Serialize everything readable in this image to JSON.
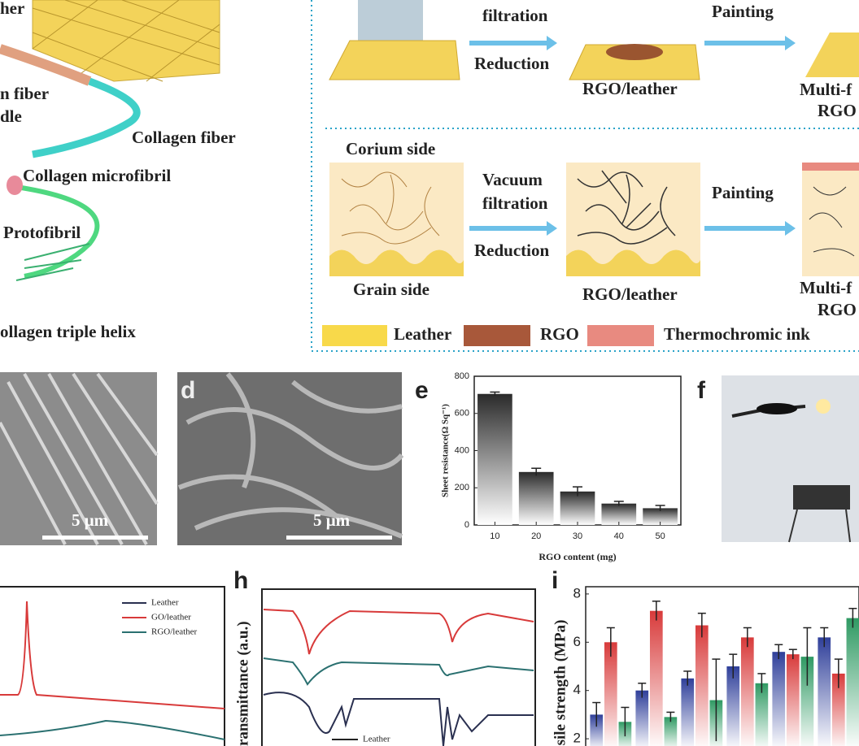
{
  "panel_a": {
    "labels": [
      "her",
      "n fiber",
      "dle",
      "Collagen fiber",
      "Collagen microfibril",
      "Protofibril",
      "ollagen triple helix"
    ]
  },
  "panel_b": {
    "labels": [
      "filtration",
      "Reduction",
      "Painting",
      "RGO/leather",
      "Multi-f",
      "RGO",
      "Corium side",
      "Vacuum",
      "filtration",
      "Reduction",
      "Painting",
      "Grain side",
      "RGO/leather",
      "Multi-f",
      "RGO"
    ],
    "legend": [
      "Leather",
      "RGO",
      "Thermochromic ink"
    ]
  },
  "panel_c": {
    "scale_bar": "5 μm"
  },
  "panel_d": {
    "label": "d",
    "scale_bar": "5 μm"
  },
  "panel_f": {
    "label": "f"
  },
  "panel_g": {
    "legend": [
      "Leather",
      "GO/leather",
      "RGO/leather"
    ]
  },
  "panel_h": {
    "label": "h",
    "y_label": "ransmittance (a.u.)",
    "legend": [
      "Leather"
    ]
  },
  "chart_data": [
    {
      "type": "bar",
      "label": "e",
      "y_label": "Sheet resistance(Ω Sq⁻¹)",
      "x_label": "RGO content (mg)",
      "categories": [
        "10",
        "20",
        "30",
        "40",
        "50"
      ],
      "values": [
        705,
        285,
        180,
        115,
        90
      ],
      "errors": [
        10,
        20,
        25,
        12,
        15
      ],
      "color": "#2a2a2a",
      "ylim": [
        0,
        800
      ],
      "yticks": [
        0,
        200,
        400,
        600,
        800
      ]
    },
    {
      "type": "grouped-bar",
      "label": "i",
      "y_label": "sile strength (MPa)",
      "categories": [
        null,
        null,
        null,
        null,
        null,
        null
      ],
      "series": [
        {
          "color": "#2f3f9a",
          "values": [
            3.0,
            4.0,
            4.5,
            5.0,
            5.6,
            6.2
          ],
          "errors": [
            0.5,
            0.3,
            0.3,
            0.5,
            0.3,
            0.4
          ]
        },
        {
          "color": "#d83a3a",
          "values": [
            6.0,
            7.3,
            6.7,
            6.2,
            5.5,
            4.7
          ],
          "errors": [
            0.6,
            0.4,
            0.5,
            0.4,
            0.2,
            0.6
          ]
        },
        {
          "color": "#2f9a63",
          "values": [
            2.7,
            2.9,
            3.6,
            4.3,
            5.4,
            7.0
          ],
          "errors": [
            0.6,
            0.2,
            1.7,
            0.4,
            1.2,
            0.4
          ]
        }
      ],
      "ylim": [
        1.7,
        8.3
      ],
      "yticks": [
        2,
        4,
        6,
        8
      ]
    }
  ]
}
